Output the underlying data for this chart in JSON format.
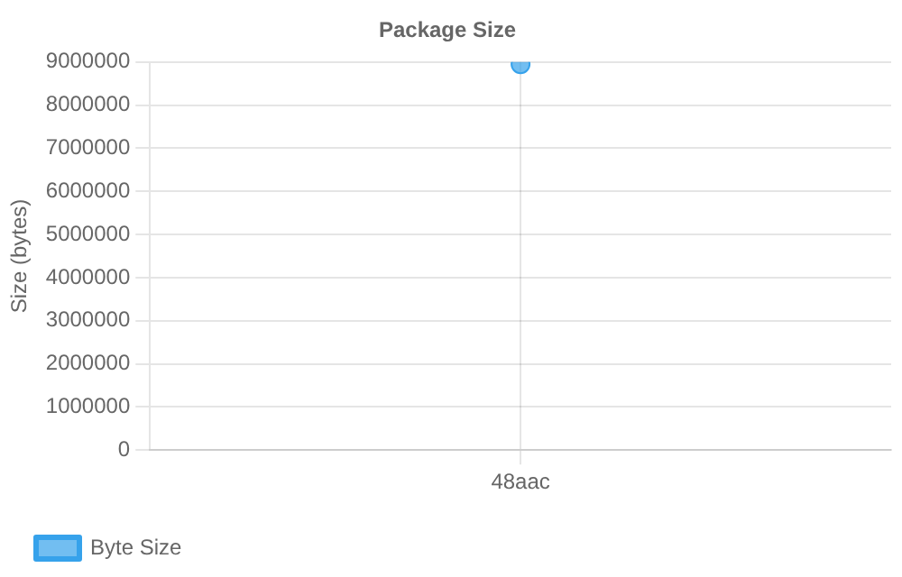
{
  "chart_data": {
    "type": "line",
    "title": "Package Size",
    "ylabel": "Size (bytes)",
    "categories": [
      "48aac"
    ],
    "series": [
      {
        "name": "Byte Size",
        "color": "#36a2eb",
        "values": [
          8950000
        ]
      }
    ],
    "ylim": [
      0,
      9000000
    ],
    "yticks": [
      0,
      1000000,
      2000000,
      3000000,
      4000000,
      5000000,
      6000000,
      7000000,
      8000000,
      9000000
    ],
    "grid": true,
    "legend": "bottom left",
    "marker": "circle"
  }
}
